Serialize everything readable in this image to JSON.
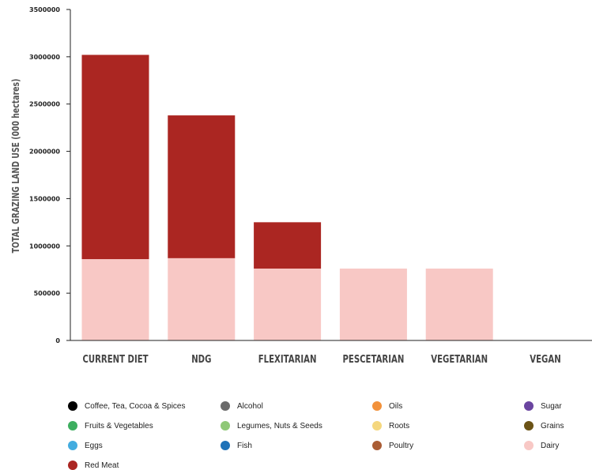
{
  "chart_data": {
    "type": "bar",
    "stacked": true,
    "title": "",
    "xlabel": "",
    "ylabel": "TOTAL GRAZING LAND USE (000 hectares)",
    "ylim": [
      0,
      3500000
    ],
    "yticks": [
      0,
      500000,
      1000000,
      1500000,
      2000000,
      2500000,
      3000000,
      3500000
    ],
    "categories": [
      "CURRENT DIET",
      "NDG",
      "FLEXITARIAN",
      "PESCETARIAN",
      "VEGETARIAN",
      "VEGAN"
    ],
    "series": [
      {
        "name": "Dairy",
        "color": "#f8c8c5",
        "values": [
          860000,
          870000,
          760000,
          760000,
          760000,
          0
        ]
      },
      {
        "name": "Red Meat",
        "color": "#ab2622",
        "values": [
          2160000,
          1510000,
          490000,
          0,
          0,
          0
        ]
      }
    ],
    "legend": [
      {
        "label": "Coffee, Tea, Cocoa & Spices",
        "color": "#000000"
      },
      {
        "label": "Alcohol",
        "color": "#6b6b6b"
      },
      {
        "label": "Oils",
        "color": "#f2913a"
      },
      {
        "label": "Sugar",
        "color": "#6a45a0"
      },
      {
        "label": "Fruits & Vegetables",
        "color": "#3dae5f"
      },
      {
        "label": "Legumes, Nuts & Seeds",
        "color": "#8fc877"
      },
      {
        "label": "Roots",
        "color": "#f5d77e"
      },
      {
        "label": "Grains",
        "color": "#6b5316"
      },
      {
        "label": "Eggs",
        "color": "#43acdf"
      },
      {
        "label": "Fish",
        "color": "#1f72b8"
      },
      {
        "label": "Poultry",
        "color": "#aa5d35"
      },
      {
        "label": "Dairy",
        "color": "#f8c8c5"
      },
      {
        "label": "Red Meat",
        "color": "#ab2622"
      }
    ],
    "legend_placement": "bottom",
    "grid": false
  }
}
